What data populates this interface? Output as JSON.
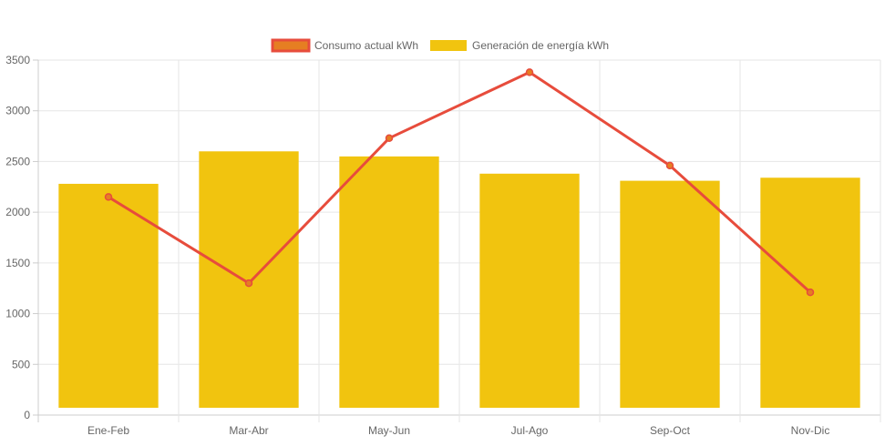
{
  "chart_data": {
    "type": "bar",
    "categories": [
      "Ene-Feb",
      "Mar-Abr",
      "May-Jun",
      "Jul-Ago",
      "Sep-Oct",
      "Nov-Dic"
    ],
    "series": [
      {
        "name": "Consumo actual kWh",
        "type": "line",
        "values": [
          2150,
          1300,
          2730,
          3380,
          2460,
          1210
        ],
        "color": "#e74c3c",
        "fill": "#e67e22"
      },
      {
        "name": "Generación de energía kWh",
        "type": "bar",
        "values": [
          2280,
          2600,
          2550,
          2380,
          2310,
          2340
        ],
        "color": "#f1c40f"
      }
    ],
    "y_ticks": [
      "0",
      "500",
      "1000",
      "1500",
      "2000",
      "2500",
      "3000",
      "3500"
    ],
    "ylim": [
      0,
      3500
    ],
    "grid": true,
    "legend_position": "top-center"
  }
}
